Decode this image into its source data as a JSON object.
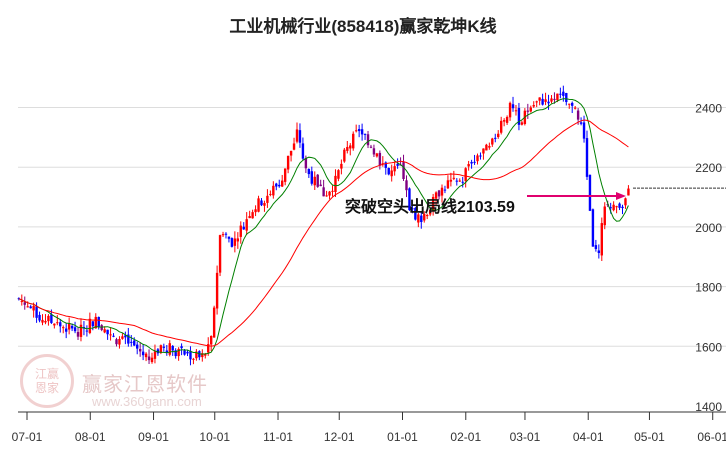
{
  "title": "工业机械行业(858418)赢家乾坤K线",
  "watermark": {
    "name": "赢家江恩软件",
    "url": "www.360gann.com",
    "logo": "江赢恩家"
  },
  "chart_data": {
    "type": "candlestick",
    "title": "工业机械行业(858418)赢家乾坤K线",
    "x_ticks": [
      {
        "label": "07-01",
        "day": 0
      },
      {
        "label": "08-01",
        "day": 31
      },
      {
        "label": "09-01",
        "day": 62
      },
      {
        "label": "10-01",
        "day": 92
      },
      {
        "label": "11-01",
        "day": 123
      },
      {
        "label": "12-01",
        "day": 153
      },
      {
        "label": "01-01",
        "day": 184
      },
      {
        "label": "02-01",
        "day": 215
      },
      {
        "label": "03-01",
        "day": 244
      },
      {
        "label": "04-01",
        "day": 275
      },
      {
        "label": "05-01",
        "day": 305
      },
      {
        "label": "06-01",
        "day": 336
      }
    ],
    "y_ticks": [
      1400,
      1600,
      1800,
      2000,
      2200,
      2400
    ],
    "ylim": [
      1400,
      2500
    ],
    "price_path": [
      [
        -4,
        1760
      ],
      [
        6,
        1700
      ],
      [
        16,
        1670
      ],
      [
        26,
        1650
      ],
      [
        33,
        1690
      ],
      [
        41,
        1630
      ],
      [
        50,
        1610
      ],
      [
        60,
        1560
      ],
      [
        68,
        1600
      ],
      [
        75,
        1580
      ],
      [
        85,
        1560
      ],
      [
        90,
        1600
      ],
      [
        92,
        1760
      ],
      [
        95,
        2000
      ],
      [
        100,
        1950
      ],
      [
        104,
        1980
      ],
      [
        109,
        2050
      ],
      [
        117,
        2100
      ],
      [
        124,
        2150
      ],
      [
        129,
        2250
      ],
      [
        133,
        2320
      ],
      [
        136,
        2200
      ],
      [
        141,
        2150
      ],
      [
        146,
        2110
      ],
      [
        151,
        2150
      ],
      [
        156,
        2250
      ],
      [
        163,
        2330
      ],
      [
        168,
        2280
      ],
      [
        173,
        2220
      ],
      [
        178,
        2180
      ],
      [
        183,
        2200
      ],
      [
        188,
        2050
      ],
      [
        193,
        2030
      ],
      [
        198,
        2070
      ],
      [
        202,
        2120
      ],
      [
        207,
        2150
      ],
      [
        212,
        2140
      ],
      [
        217,
        2220
      ],
      [
        222,
        2250
      ],
      [
        227,
        2260
      ],
      [
        232,
        2350
      ],
      [
        237,
        2400
      ],
      [
        242,
        2350
      ],
      [
        246,
        2400
      ],
      [
        251,
        2420
      ],
      [
        259,
        2440
      ],
      [
        264,
        2420
      ],
      [
        269,
        2380
      ],
      [
        273,
        2300
      ],
      [
        277,
        1950
      ],
      [
        280,
        1890
      ],
      [
        283,
        2080
      ],
      [
        288,
        2060
      ],
      [
        293,
        2090
      ],
      [
        296,
        2130
      ]
    ],
    "annotation": {
      "text": "突破空头出局线2103.59",
      "value": 2103.59
    },
    "last_price_line": 2130,
    "colors": {
      "up": "#ff0000",
      "down": "#0000ff",
      "special": "#800080",
      "ma_short": "#008000",
      "ma_long": "#ff0000",
      "annotation": "#e0006e"
    }
  }
}
